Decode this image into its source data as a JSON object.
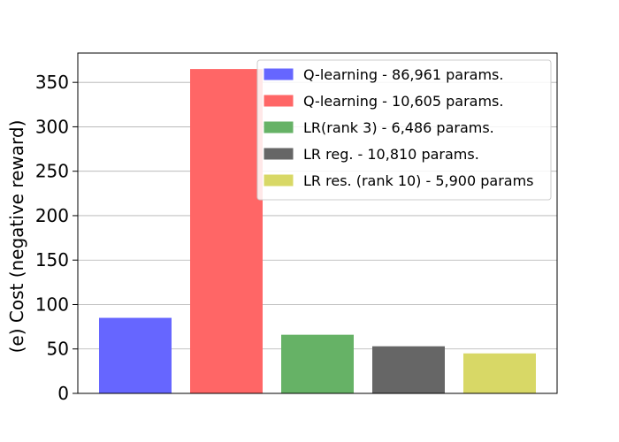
{
  "chart_data": {
    "type": "bar",
    "ylabel": "(e) Cost (negative reward)",
    "ylim": [
      0,
      383
    ],
    "yticks": [
      0,
      50,
      100,
      150,
      200,
      250,
      300,
      350
    ],
    "grid": "horizontal",
    "legend_position": "top-right",
    "series": [
      {
        "name": "Q-learning - 86,961 params.",
        "value": 85,
        "color": "#6666ff"
      },
      {
        "name": "Q-learning - 10,605 params.",
        "value": 365,
        "color": "#ff6666"
      },
      {
        "name": "LR(rank 3) - 6,486 params.",
        "value": 66,
        "color": "#66b266"
      },
      {
        "name": "LR reg. - 10,810 params.",
        "value": 53,
        "color": "#666666"
      },
      {
        "name": "LR res. (rank 10) - 5,900 params",
        "value": 45,
        "color": "#d8d866"
      }
    ]
  }
}
